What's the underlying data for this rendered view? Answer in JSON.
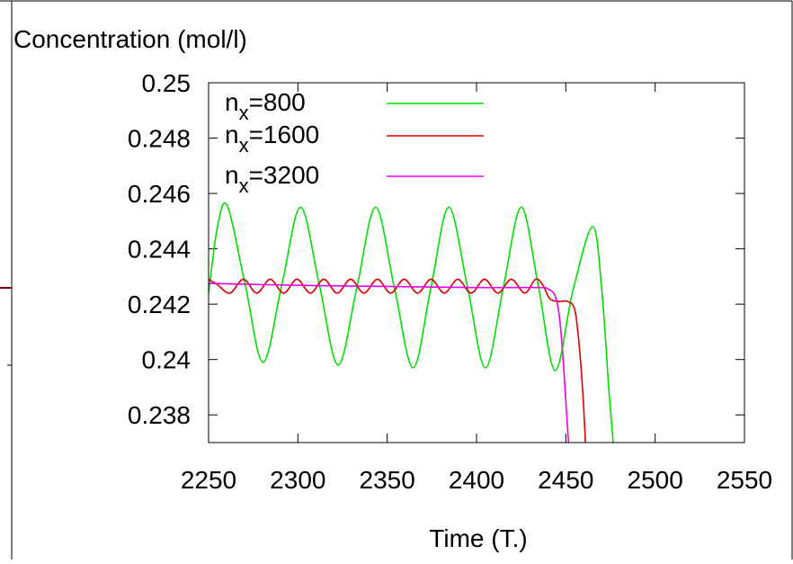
{
  "chart_data": {
    "type": "line",
    "ylabel": "Concentration (mol/l)",
    "xlabel": "Time (T.)",
    "xlim": [
      2250,
      2550
    ],
    "ylim": [
      0.237,
      0.25
    ],
    "xticks": [
      2250,
      2300,
      2350,
      2400,
      2450,
      2500,
      2550
    ],
    "xtick_labels": [
      "2250",
      "2300",
      "2350",
      "2400",
      "2450",
      "2500",
      "2550"
    ],
    "yticks": [
      0.238,
      0.24,
      0.242,
      0.244,
      0.246,
      0.248,
      0.25
    ],
    "ytick_labels": [
      "0.238",
      "0.24",
      "0.242",
      "0.244",
      "0.246",
      "0.248",
      "0.25"
    ],
    "grid": false,
    "legend_position": "top-left",
    "series": [
      {
        "name": "n_x=800",
        "label_base": "n",
        "label_sub": "x",
        "label_rest": "=800",
        "color": "#00dd00",
        "x": [
          2250,
          2255,
          2260.5,
          2270.5,
          2280.5,
          2291,
          2301.5,
          2312,
          2322.5,
          2333,
          2343.5,
          2354,
          2364.5,
          2374.5,
          2384.5,
          2395,
          2405,
          2415,
          2425,
          2434.5,
          2444,
          2454,
          2465,
          2470,
          2474,
          2476.5
        ],
        "y": [
          0.2424,
          0.2448,
          0.24555,
          0.2427,
          0.2399,
          0.2427,
          0.2455,
          0.2427,
          0.2398,
          0.2426,
          0.2455,
          0.2426,
          0.2397,
          0.2426,
          0.2455,
          0.2426,
          0.2397,
          0.2426,
          0.2455,
          0.2427,
          0.2396,
          0.2425,
          0.2448,
          0.2426,
          0.239,
          0.237
        ]
      },
      {
        "name": "n_x=1600",
        "label_base": "n",
        "label_sub": "x",
        "label_rest": "=1600",
        "color": "#dd0000",
        "x": [
          2250,
          2255,
          2262,
          2269.5,
          2277,
          2284.5,
          2292,
          2299.5,
          2307,
          2314.5,
          2322,
          2329.5,
          2337,
          2344.5,
          2352,
          2359.5,
          2367,
          2374.5,
          2382,
          2389.5,
          2397,
          2404.5,
          2412,
          2419.5,
          2427,
          2433,
          2437,
          2441,
          2446,
          2451,
          2455,
          2457.5,
          2459.5,
          2461
        ],
        "y": [
          0.2429,
          0.2427,
          0.2424,
          0.2429,
          0.2424,
          0.2429,
          0.2424,
          0.2429,
          0.2424,
          0.2429,
          0.2424,
          0.2429,
          0.2424,
          0.2429,
          0.2424,
          0.2429,
          0.2424,
          0.2429,
          0.2424,
          0.2429,
          0.2424,
          0.2429,
          0.2424,
          0.2429,
          0.2424,
          0.2429,
          0.2427,
          0.2422,
          0.2421,
          0.2421,
          0.2418,
          0.2405,
          0.2388,
          0.237
        ]
      },
      {
        "name": "n_x=3200",
        "label_base": "n",
        "label_sub": "x",
        "label_rest": "=3200",
        "color": "#ee00ee",
        "x": [
          2250,
          2300,
          2350,
          2400,
          2435,
          2440,
          2444,
          2446.5,
          2448.5,
          2450,
          2451.5
        ],
        "y": [
          0.24275,
          0.24268,
          0.24264,
          0.2426,
          0.2426,
          0.24255,
          0.2423,
          0.2415,
          0.24,
          0.2385,
          0.237
        ]
      }
    ],
    "decorations": {
      "left_marks": [
        {
          "color": "#8b0000"
        },
        {
          "color": "#000000"
        }
      ]
    }
  }
}
